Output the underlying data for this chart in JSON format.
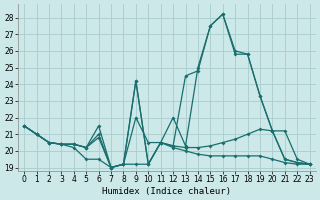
{
  "xlabel": "Humidex (Indice chaleur)",
  "bg_color": "#cce8e8",
  "line_color": "#1a6e6e",
  "grid_color": "#aacccc",
  "xlim": [
    -0.5,
    23.5
  ],
  "ylim": [
    18.8,
    28.8
  ],
  "xticks": [
    0,
    1,
    2,
    3,
    4,
    5,
    6,
    7,
    8,
    9,
    10,
    11,
    12,
    13,
    14,
    15,
    16,
    17,
    18,
    19,
    20,
    21,
    22,
    23
  ],
  "yticks": [
    19,
    20,
    21,
    22,
    23,
    24,
    25,
    26,
    27,
    28
  ],
  "series": [
    [
      21.5,
      21.0,
      20.5,
      20.4,
      20.2,
      19.5,
      19.5,
      19.0,
      19.2,
      19.2,
      19.2,
      20.5,
      20.2,
      20.0,
      19.8,
      19.7,
      19.7,
      19.7,
      19.7,
      19.7,
      19.5,
      19.3,
      19.2,
      19.2
    ],
    [
      21.5,
      21.0,
      20.5,
      20.4,
      20.4,
      20.2,
      20.8,
      19.0,
      19.2,
      22.0,
      20.5,
      20.5,
      20.3,
      20.2,
      20.2,
      20.3,
      20.5,
      20.7,
      21.0,
      21.3,
      21.2,
      19.5,
      19.3,
      19.2
    ],
    [
      21.5,
      21.0,
      20.5,
      20.4,
      20.4,
      20.2,
      21.0,
      19.0,
      19.2,
      24.2,
      19.2,
      20.5,
      20.3,
      24.5,
      24.8,
      27.5,
      28.2,
      26.0,
      25.8,
      23.3,
      21.2,
      21.2,
      19.5,
      19.2
    ],
    [
      21.5,
      21.0,
      20.5,
      20.4,
      20.4,
      20.2,
      21.5,
      19.0,
      19.2,
      24.2,
      19.2,
      20.5,
      22.0,
      20.3,
      25.0,
      27.5,
      28.2,
      25.8,
      25.8,
      23.3,
      21.2,
      19.5,
      19.3,
      19.2
    ]
  ]
}
